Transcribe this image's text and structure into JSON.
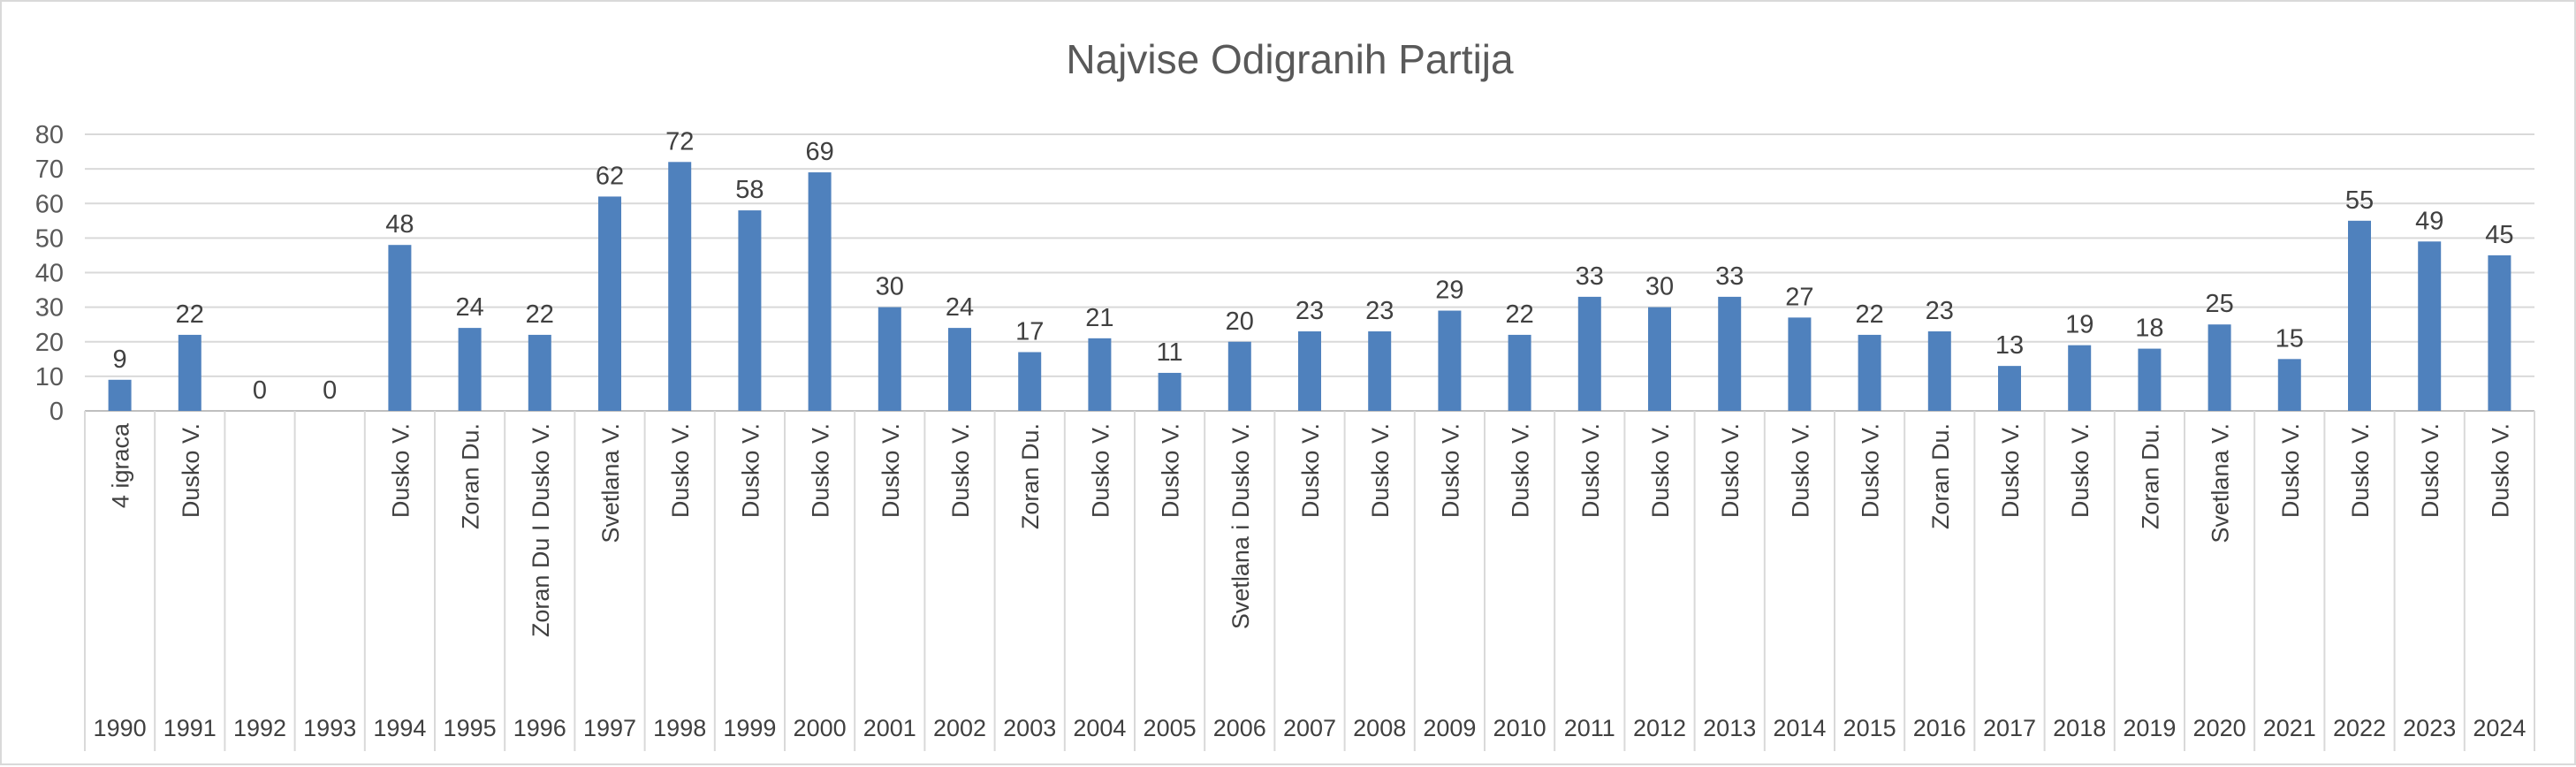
{
  "chart_data": {
    "type": "bar",
    "title": "Najvise Odigranih Partija",
    "xlabel": "",
    "ylabel": "",
    "ylim": [
      0,
      80
    ],
    "yticks": [
      0,
      10,
      20,
      30,
      40,
      50,
      60,
      70,
      80
    ],
    "grid": true,
    "legend": "none",
    "bar_color": "#4f81bd",
    "categories": [
      {
        "year": "1990",
        "player": "4 igraca",
        "value": 9
      },
      {
        "year": "1991",
        "player": "Dusko V.",
        "value": 22
      },
      {
        "year": "1992",
        "player": "",
        "value": 0
      },
      {
        "year": "1993",
        "player": "",
        "value": 0
      },
      {
        "year": "1994",
        "player": "Dusko V.",
        "value": 48
      },
      {
        "year": "1995",
        "player": "Zoran Du.",
        "value": 24
      },
      {
        "year": "1996",
        "player": "Zoran Du I Dusko V.",
        "value": 22
      },
      {
        "year": "1997",
        "player": "Svetlana V.",
        "value": 62
      },
      {
        "year": "1998",
        "player": "Dusko V.",
        "value": 72
      },
      {
        "year": "1999",
        "player": "Dusko V.",
        "value": 58
      },
      {
        "year": "2000",
        "player": "Dusko V.",
        "value": 69
      },
      {
        "year": "2001",
        "player": "Dusko V.",
        "value": 30
      },
      {
        "year": "2002",
        "player": "Dusko V.",
        "value": 24
      },
      {
        "year": "2003",
        "player": "Zoran Du.",
        "value": 17
      },
      {
        "year": "2004",
        "player": "Dusko V.",
        "value": 21
      },
      {
        "year": "2005",
        "player": "Dusko V.",
        "value": 11
      },
      {
        "year": "2006",
        "player": "Svetlana i Dusko V.",
        "value": 20
      },
      {
        "year": "2007",
        "player": "Dusko V.",
        "value": 23
      },
      {
        "year": "2008",
        "player": "Dusko V.",
        "value": 23
      },
      {
        "year": "2009",
        "player": "Dusko V.",
        "value": 29
      },
      {
        "year": "2010",
        "player": "Dusko V.",
        "value": 22
      },
      {
        "year": "2011",
        "player": "Dusko V.",
        "value": 33
      },
      {
        "year": "2012",
        "player": "Dusko V.",
        "value": 30
      },
      {
        "year": "2013",
        "player": "Dusko V.",
        "value": 33
      },
      {
        "year": "2014",
        "player": "Dusko V.",
        "value": 27
      },
      {
        "year": "2015",
        "player": "Dusko V.",
        "value": 22
      },
      {
        "year": "2016",
        "player": "Zoran Du.",
        "value": 23
      },
      {
        "year": "2017",
        "player": "Dusko V.",
        "value": 13
      },
      {
        "year": "2018",
        "player": "Dusko V.",
        "value": 19
      },
      {
        "year": "2019",
        "player": "Zoran Du.",
        "value": 18
      },
      {
        "year": "2020",
        "player": "Svetlana V.",
        "value": 25
      },
      {
        "year": "2021",
        "player": "Dusko V.",
        "value": 15
      },
      {
        "year": "2022",
        "player": "Dusko V.",
        "value": 55
      },
      {
        "year": "2023",
        "player": "Dusko V.",
        "value": 49
      },
      {
        "year": "2024",
        "player": "Dusko V.",
        "value": 45
      }
    ]
  }
}
